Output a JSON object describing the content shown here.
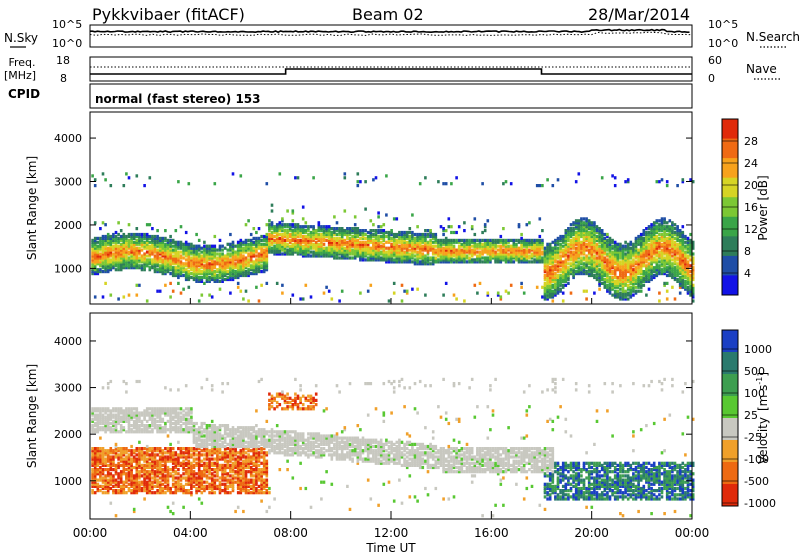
{
  "header": {
    "station": "Pykkvibaer (fitACF)",
    "beam": "Beam 02",
    "date": "28/Mar/2014"
  },
  "nsky_panel": {
    "left_label": "N.Sky",
    "right_label": "N.Search",
    "left_ticks": [
      "10^5",
      "10^0"
    ],
    "right_ticks": [
      "10^5",
      "10^0"
    ]
  },
  "freq_panel": {
    "left_label_line1": "Freq.",
    "left_label_line2": "[MHz]",
    "right_label": "Nave",
    "left_ticks": [
      "18",
      "8"
    ],
    "right_ticks": [
      "60",
      "0"
    ]
  },
  "cpid": {
    "label": "CPID",
    "value": "normal (fast stereo) 153"
  },
  "chart_data": [
    {
      "type": "heatmap",
      "title": "",
      "quantity": "Power",
      "ylabel": "Slant Range [km]",
      "yticks": [
        "1000",
        "2000",
        "3000",
        "4000"
      ],
      "ylim": [
        180,
        4600
      ],
      "colorbar_label": "Power [dB]",
      "colorbar_ticks": [
        "4",
        "8",
        "12",
        "16",
        "20",
        "24",
        "28"
      ],
      "colorbar_range": [
        0,
        32
      ],
      "colors": [
        "#1212e6",
        "#1f4ea6",
        "#2e7d5a",
        "#3aa548",
        "#7cc834",
        "#d6d424",
        "#f7a21c",
        "#ef6a14",
        "#e02a0a"
      ],
      "bands": [
        {
          "from_h": 0.0,
          "to_h": 7.0,
          "range_km": [
            700,
            1700
          ],
          "level": "high"
        },
        {
          "from_h": 7.0,
          "to_h": 13.8,
          "range_km": [
            1300,
            2000
          ],
          "level": "mid-high"
        },
        {
          "from_h": 13.8,
          "to_h": 18.0,
          "range_km": [
            1100,
            1700
          ],
          "level": "high"
        },
        {
          "from_h": 18.0,
          "to_h": 24.0,
          "range_km": [
            500,
            2200
          ],
          "level": "mixed"
        }
      ]
    },
    {
      "type": "heatmap",
      "title": "",
      "quantity": "Velocity",
      "ylabel": "Slant Range [km]",
      "xlabel": "Time UT",
      "yticks": [
        "1000",
        "2000",
        "3000",
        "4000"
      ],
      "xticks": [
        "00:00",
        "04:00",
        "08:00",
        "12:00",
        "16:00",
        "20:00",
        "00:00"
      ],
      "xlim_hours": [
        0,
        24
      ],
      "ylim": [
        180,
        4600
      ],
      "colorbar_label_main": "Velocity",
      "colorbar_label_unit": "[m s",
      "colorbar_label_sup": "-1",
      "colorbar_label_end": "]",
      "colorbar_ticks": [
        "1000",
        "500",
        "100",
        "25",
        "-25",
        "-100",
        "-500",
        "-1000"
      ],
      "colors": [
        "#1b3fc4",
        "#2a7a6e",
        "#3d9e50",
        "#58c832",
        "#c8c8c0",
        "#f0a02a",
        "#ee6a12",
        "#e02a0a"
      ],
      "bands": [
        {
          "from_h": 0.0,
          "to_h": 7.0,
          "range_km": [
            700,
            1700
          ],
          "level": "negative"
        },
        {
          "from_h": 4.0,
          "to_h": 18.5,
          "range_km": [
            1200,
            2600
          ],
          "level": "ground-scatter"
        },
        {
          "from_h": 18.0,
          "to_h": 24.0,
          "range_km": [
            600,
            1400
          ],
          "level": "positive"
        }
      ]
    }
  ]
}
